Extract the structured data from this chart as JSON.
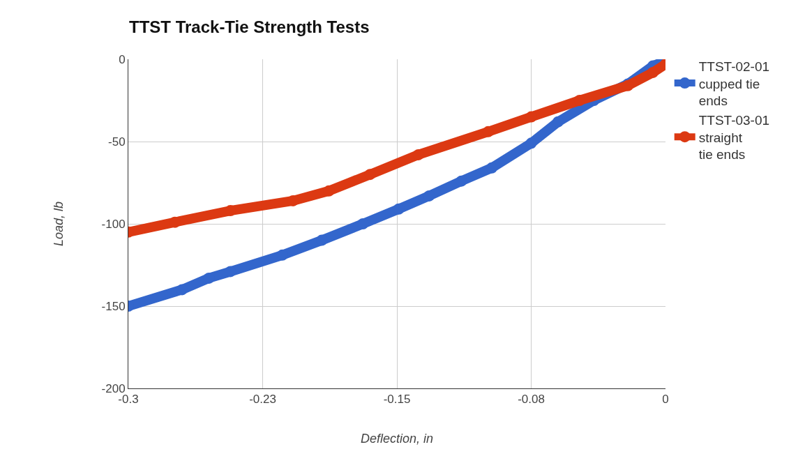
{
  "chart_data": {
    "type": "line",
    "title": "TTST Track-Tie Strength Tests",
    "xlabel": "Deflection, in",
    "ylabel": "Load, lb",
    "xlim": [
      -0.3,
      0
    ],
    "xticks": [
      -0.3,
      {
        "value": -0.225,
        "label": "-0.23"
      },
      -0.15,
      {
        "value": -0.075,
        "label": "-0.08"
      },
      0
    ],
    "ylim": [
      -200,
      0
    ],
    "yticks": [
      -200,
      -150,
      -100,
      -50,
      0
    ],
    "grid": true,
    "legend": "top right",
    "marker": "circle",
    "series": [
      {
        "name": "TTST-02-01 cupped tie ends",
        "color": "#3366cc",
        "x": [
          -0.3,
          -0.27,
          -0.255,
          -0.243,
          -0.214,
          -0.192,
          -0.169,
          -0.149,
          -0.132,
          -0.114,
          -0.097,
          -0.075,
          -0.06,
          -0.04,
          -0.021,
          -0.007,
          0
        ],
        "values": [
          -150,
          -140,
          -133,
          -129,
          -119,
          -110,
          -100,
          -91,
          -83,
          -74,
          -66,
          -51,
          -38,
          -25,
          -15,
          -4,
          -1
        ]
      },
      {
        "name": "TTST-03-01 straight tie ends",
        "color": "#dc3912",
        "x": [
          -0.3,
          -0.274,
          -0.243,
          -0.208,
          -0.188,
          -0.165,
          -0.138,
          -0.099,
          -0.075,
          -0.048,
          -0.021,
          -0.007,
          0
        ],
        "values": [
          -105,
          -99,
          -92,
          -86,
          -80,
          -70,
          -58,
          -44,
          -35,
          -25,
          -16,
          -8,
          -3
        ]
      }
    ]
  }
}
